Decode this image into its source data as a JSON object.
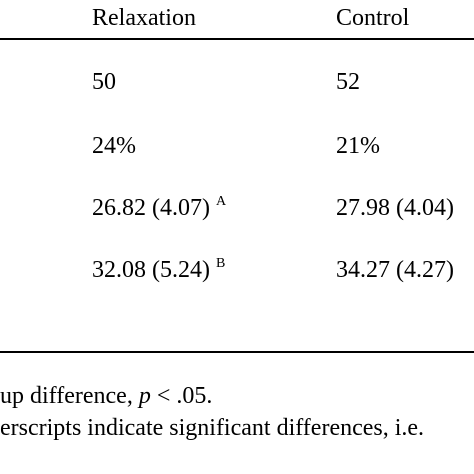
{
  "table": {
    "columns": [
      "Relaxation",
      "Control"
    ],
    "rows": [
      {
        "relaxation": "50",
        "control": "52"
      },
      {
        "relaxation": "24%",
        "control": "21%"
      },
      {
        "relaxation": "26.82 (4.07)",
        "relaxation_sup": "A",
        "control": "27.98 (4.04)"
      },
      {
        "relaxation": "32.08 (5.24)",
        "relaxation_sup": "B",
        "control": "34.27 (4.27)"
      }
    ]
  },
  "notes": {
    "line1_prefix": "up difference, ",
    "line1_italic": "p",
    "line1_suffix": " < .05.",
    "line2": "erscripts indicate significant differences, i.e."
  }
}
